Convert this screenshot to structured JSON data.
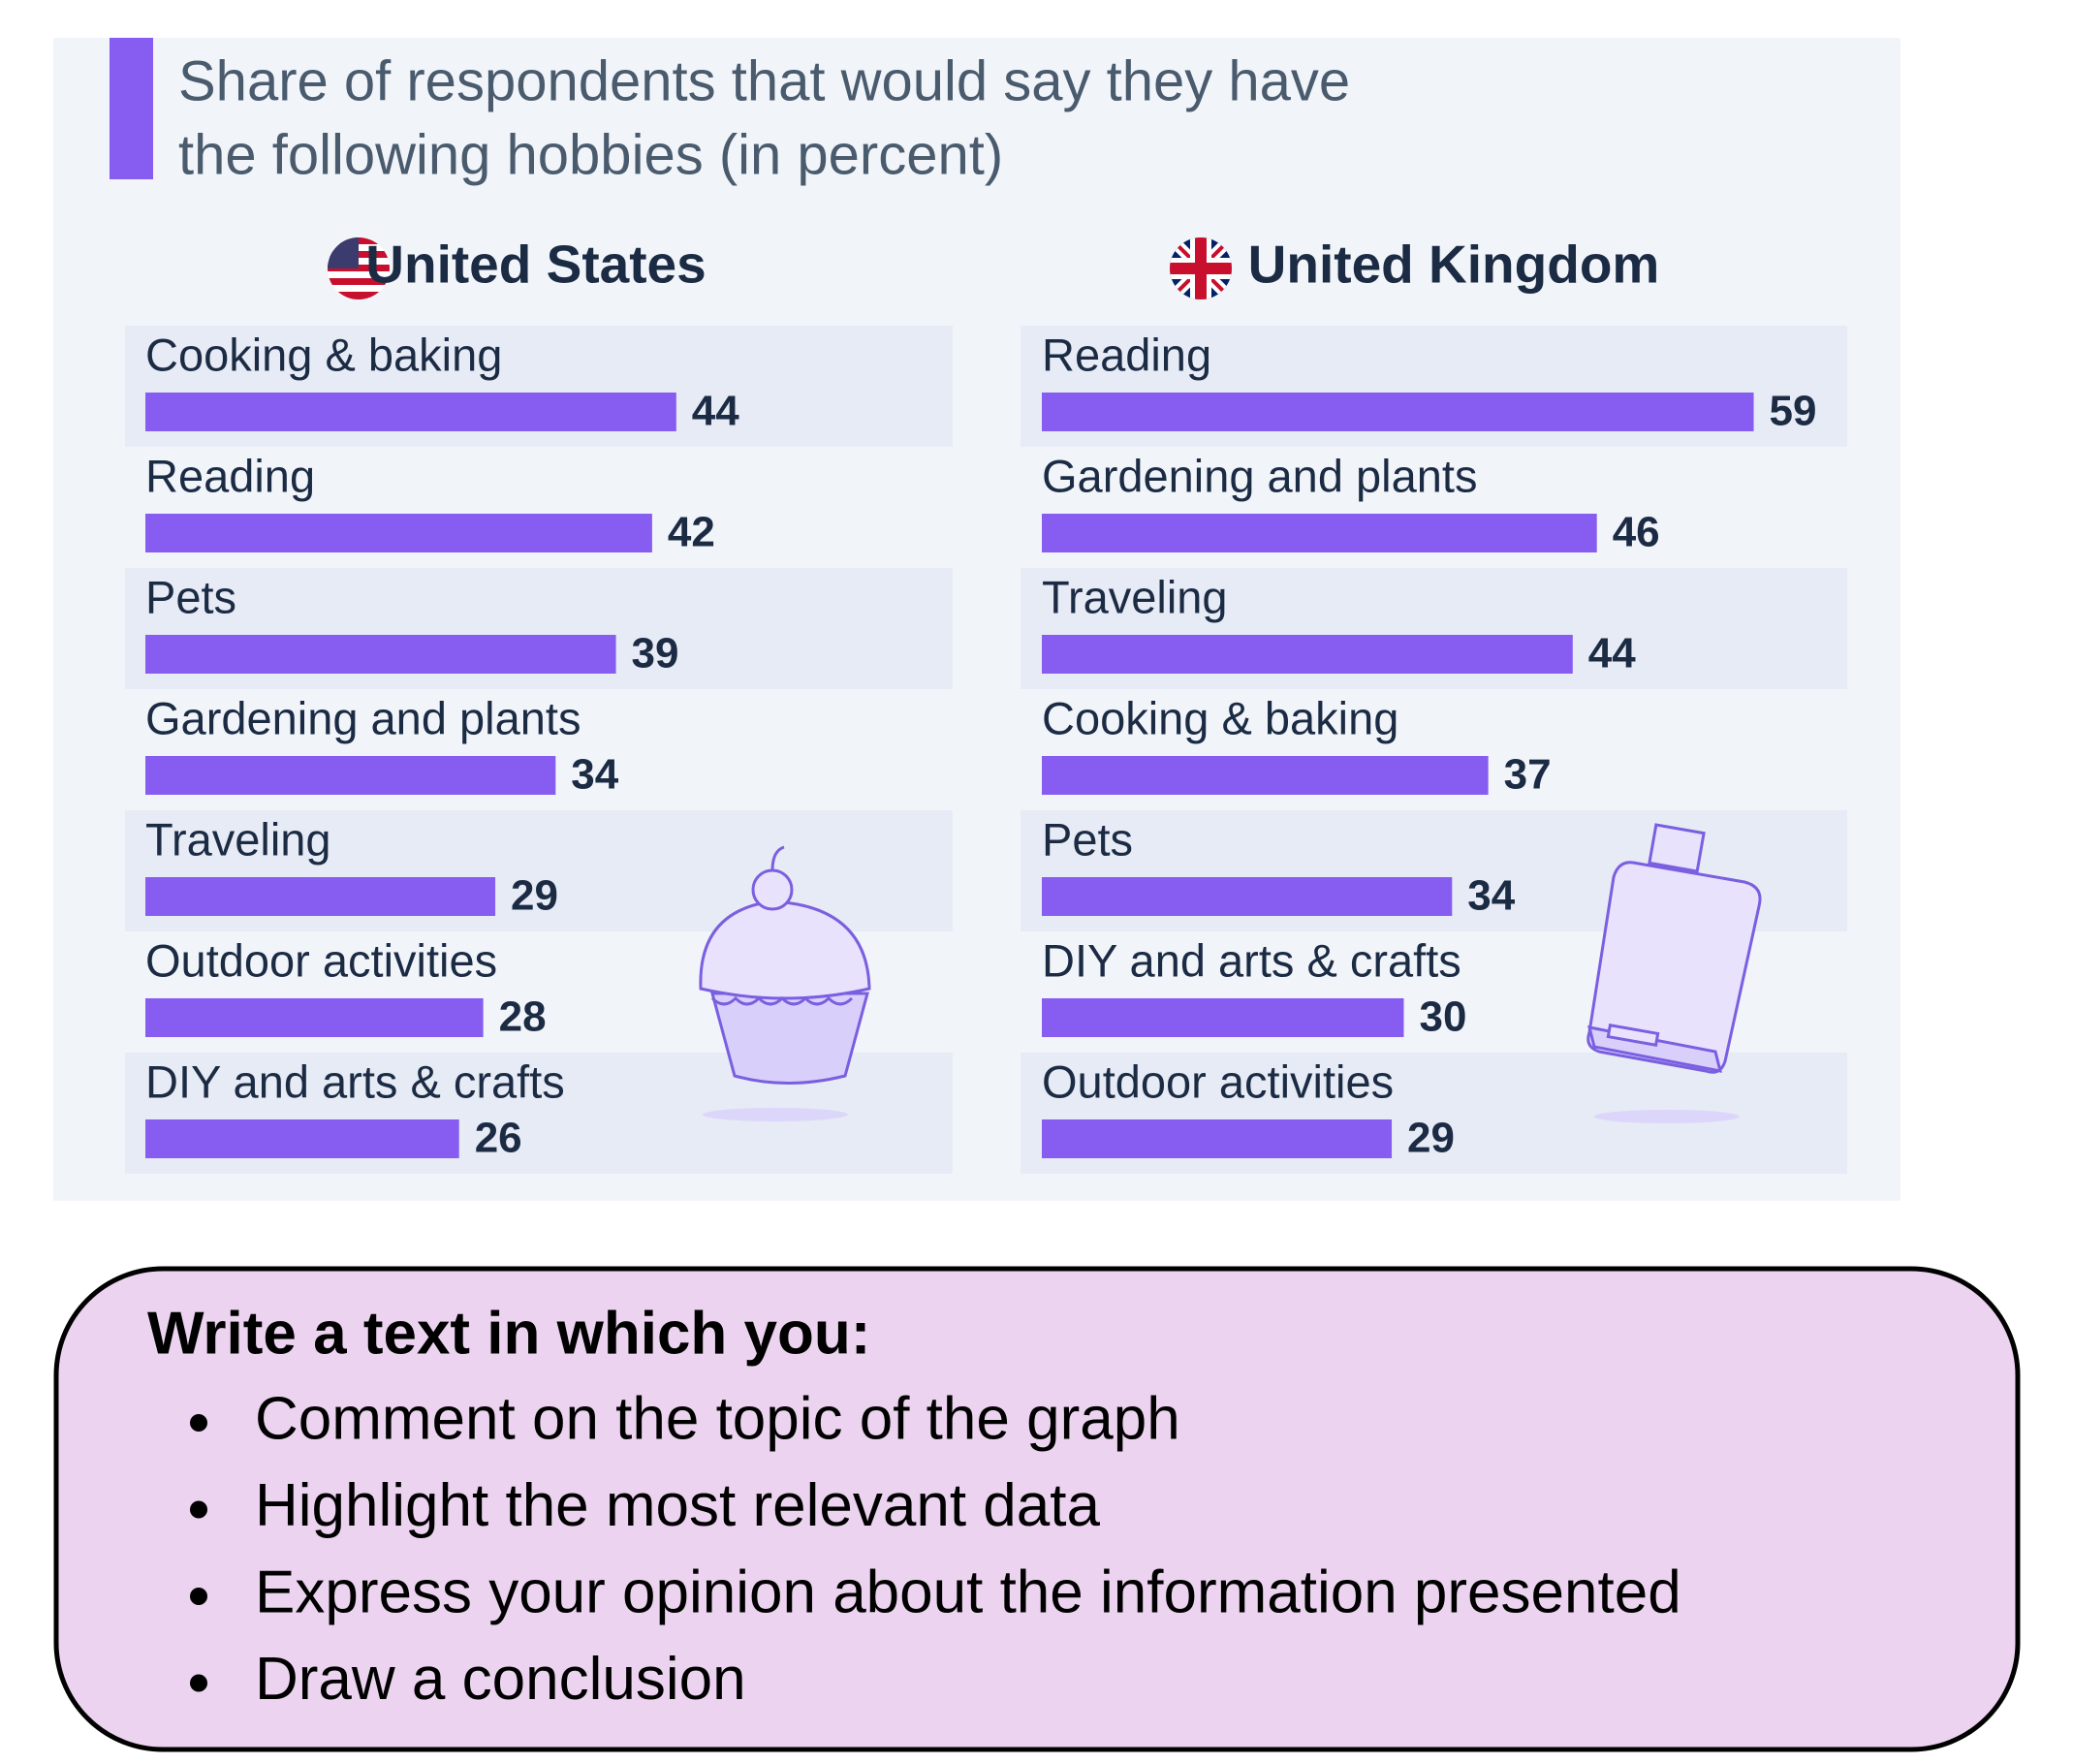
{
  "header": {
    "title_lines": [
      "Share of respondents that would say they have",
      "the following hobbies (in percent)"
    ]
  },
  "chart_data": [
    {
      "type": "bar",
      "title": "United States",
      "color": "#875cf0",
      "categories": [
        "Cooking & baking",
        "Reading",
        "Pets",
        "Gardening and plants",
        "Traveling",
        "Outdoor activities",
        "DIY and arts & crafts"
      ],
      "values": [
        44,
        42,
        39,
        34,
        29,
        28,
        26
      ]
    },
    {
      "type": "bar",
      "title": "United Kingdom",
      "color": "#875cf0",
      "categories": [
        "Reading",
        "Gardening and plants",
        "Traveling",
        "Cooking & baking",
        "Pets",
        "DIY and arts & crafts",
        "Outdoor activities"
      ],
      "values": [
        59,
        46,
        44,
        37,
        34,
        30,
        29
      ]
    }
  ],
  "task": {
    "heading": "Write a text in which you:",
    "items": [
      "Comment on the topic of the graph",
      "Highlight the most relevant data",
      "Express your opinion about the information presented",
      "Draw a conclusion"
    ]
  }
}
